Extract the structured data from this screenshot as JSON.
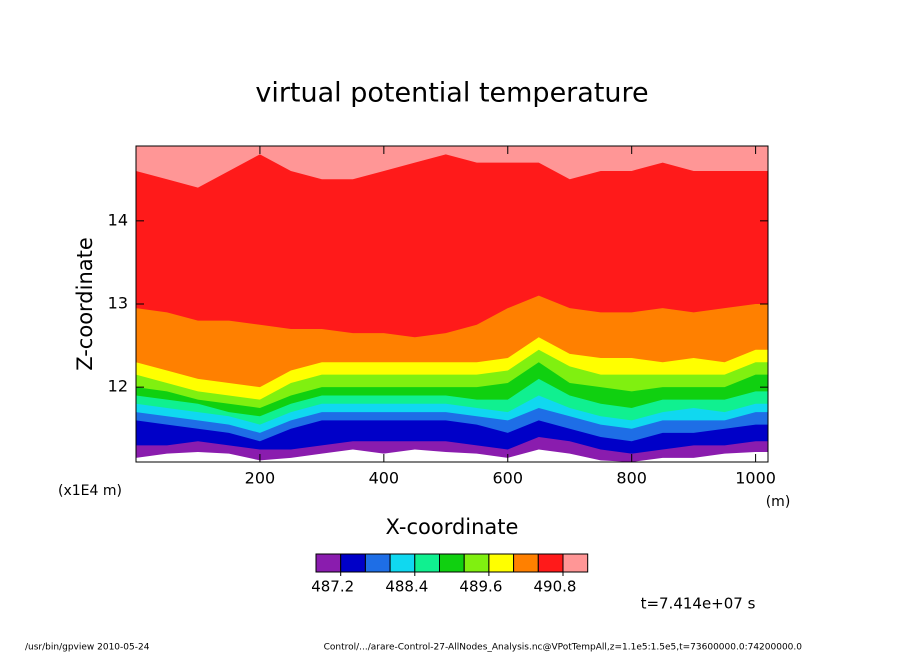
{
  "chart_data": {
    "type": "contour",
    "title": "virtual potential temperature",
    "xlabel": "X-coordinate",
    "ylabel": "Z-coordinate",
    "xunit": "(m)",
    "yunit": "(x1E4 m)",
    "time_label": "t=7.414e+07 s",
    "footer_left": "/usr/bin/gpview  2010-05-24",
    "footer_right": "Control/.../arare-Control-27-AllNodes_Analysis.nc@VPotTempAll,z=1.1e5:1.5e5,t=73600000.0:74200000.0",
    "xlim": [
      0,
      1020
    ],
    "ylim": [
      11.1,
      14.9
    ],
    "xticks": [
      200,
      400,
      600,
      800,
      1000
    ],
    "yticks": [
      12,
      13,
      14
    ],
    "x": [
      0,
      50,
      100,
      150,
      200,
      250,
      300,
      350,
      400,
      450,
      500,
      550,
      600,
      650,
      700,
      750,
      800,
      850,
      900,
      950,
      1000,
      1020
    ],
    "levels": [
      486.8,
      487.2,
      487.6,
      488.0,
      488.4,
      488.8,
      489.2,
      489.6,
      490.0,
      490.4,
      490.8
    ],
    "colors": [
      "#8a1cae",
      "#0000c8",
      "#1e6ee6",
      "#10d8f0",
      "#10f090",
      "#10d010",
      "#80f010",
      "#ffff00",
      "#ff8000",
      "#ff1a1a",
      "#ff9696"
    ],
    "colorbar_ticks": [
      487.2,
      488.4,
      489.6,
      490.8
    ],
    "contour_z": [
      [
        11.15,
        11.2,
        11.22,
        11.2,
        11.12,
        11.15,
        11.2,
        11.25,
        11.2,
        11.25,
        11.22,
        11.2,
        11.15,
        11.25,
        11.2,
        11.12,
        11.1,
        11.15,
        11.15,
        11.2,
        11.22,
        11.22
      ],
      [
        11.3,
        11.3,
        11.35,
        11.3,
        11.25,
        11.25,
        11.3,
        11.35,
        11.35,
        11.35,
        11.35,
        11.3,
        11.25,
        11.4,
        11.35,
        11.25,
        11.2,
        11.25,
        11.3,
        11.3,
        11.35,
        11.35
      ],
      [
        11.6,
        11.55,
        11.5,
        11.45,
        11.35,
        11.5,
        11.6,
        11.6,
        11.6,
        11.6,
        11.6,
        11.55,
        11.45,
        11.6,
        11.5,
        11.4,
        11.35,
        11.45,
        11.45,
        11.5,
        11.55,
        11.55
      ],
      [
        11.7,
        11.65,
        11.6,
        11.55,
        11.45,
        11.6,
        11.7,
        11.7,
        11.7,
        11.7,
        11.7,
        11.65,
        11.6,
        11.75,
        11.65,
        11.55,
        11.5,
        11.6,
        11.6,
        11.6,
        11.7,
        11.7
      ],
      [
        11.8,
        11.75,
        11.7,
        11.65,
        11.55,
        11.7,
        11.8,
        11.8,
        11.8,
        11.8,
        11.8,
        11.75,
        11.7,
        11.9,
        11.75,
        11.65,
        11.6,
        11.7,
        11.75,
        11.7,
        11.8,
        11.8
      ],
      [
        11.9,
        11.85,
        11.8,
        11.7,
        11.65,
        11.8,
        11.9,
        11.9,
        11.9,
        11.9,
        11.9,
        11.85,
        11.85,
        12.1,
        11.9,
        11.8,
        11.75,
        11.85,
        11.85,
        11.85,
        11.95,
        11.95
      ],
      [
        12.0,
        11.95,
        11.85,
        11.8,
        11.75,
        11.9,
        12.0,
        12.0,
        12.0,
        12.0,
        12.0,
        12.0,
        12.05,
        12.3,
        12.05,
        12.0,
        11.95,
        12.0,
        12.0,
        12.0,
        12.15,
        12.15
      ],
      [
        12.15,
        12.05,
        11.95,
        11.9,
        11.85,
        12.05,
        12.15,
        12.15,
        12.15,
        12.15,
        12.15,
        12.15,
        12.2,
        12.45,
        12.25,
        12.15,
        12.15,
        12.15,
        12.15,
        12.15,
        12.3,
        12.3
      ],
      [
        12.3,
        12.2,
        12.1,
        12.05,
        12.0,
        12.2,
        12.3,
        12.3,
        12.3,
        12.3,
        12.3,
        12.3,
        12.35,
        12.6,
        12.4,
        12.35,
        12.35,
        12.3,
        12.35,
        12.3,
        12.45,
        12.45
      ],
      [
        12.95,
        12.9,
        12.8,
        12.8,
        12.75,
        12.7,
        12.7,
        12.65,
        12.65,
        12.6,
        12.65,
        12.75,
        12.95,
        13.1,
        12.95,
        12.9,
        12.9,
        12.95,
        12.9,
        12.95,
        13.0,
        13.0
      ],
      [
        14.6,
        14.5,
        14.4,
        14.6,
        14.8,
        14.6,
        14.5,
        14.5,
        14.6,
        14.7,
        14.8,
        14.7,
        14.7,
        14.7,
        14.5,
        14.6,
        14.6,
        14.7,
        14.6,
        14.6,
        14.6,
        14.6
      ]
    ]
  }
}
